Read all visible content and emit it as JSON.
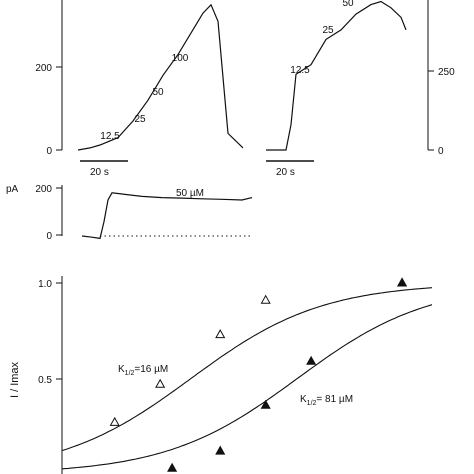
{
  "chart_data": [
    {
      "type": "line",
      "panel": "A-left",
      "y_ticks": [
        "200",
        "0"
      ],
      "concentration_labels": [
        "12.5",
        "25",
        "50",
        "100"
      ],
      "scale_bar_label": "20 s",
      "series": [
        {
          "x": [
            0,
            12,
            22,
            40,
            55,
            70,
            85,
            100,
            115,
            125,
            133,
            140,
            150,
            165
          ],
          "y": [
            0,
            5,
            12,
            30,
            70,
            120,
            180,
            230,
            290,
            330,
            350,
            310,
            40,
            5
          ]
        }
      ]
    },
    {
      "type": "line",
      "panel": "A-right",
      "y_ticks": [
        "250",
        "0"
      ],
      "concentration_labels": [
        "12.5",
        "25",
        "50"
      ],
      "scale_bar_label": "20 s",
      "series": [
        {
          "x": [
            0,
            20,
            25,
            30,
            45,
            60,
            75,
            90,
            105,
            115,
            125,
            135,
            140
          ],
          "y": [
            0,
            0,
            80,
            240,
            270,
            350,
            380,
            430,
            460,
            470,
            450,
            420,
            380
          ]
        }
      ]
    },
    {
      "type": "line",
      "panel": "B",
      "y_unit": "pA",
      "y_ticks": [
        "200",
        "0"
      ],
      "concentration_label": "50 µM",
      "baseline": 0,
      "series": [
        {
          "x": [
            0,
            10,
            18,
            22,
            26,
            30,
            40,
            60,
            80,
            100,
            120,
            140,
            160,
            170
          ],
          "y": [
            0,
            -5,
            -10,
            60,
            150,
            180,
            175,
            165,
            160,
            158,
            155,
            153,
            150,
            160
          ]
        }
      ]
    },
    {
      "type": "scatter",
      "panel": "C",
      "ylabel": "I / Imax",
      "y_ticks": [
        "1.0",
        "0.5"
      ],
      "ylim": [
        0,
        1
      ],
      "x_scale": "log",
      "series": [
        {
          "name": "K1/2=16 µM",
          "marker": "open-triangle",
          "k_half": 16,
          "x": [
            5,
            10,
            25,
            50,
            400
          ],
          "y": [
            0.27,
            0.47,
            0.73,
            0.91,
            1.0
          ]
        },
        {
          "name": "K1/2=81 µM",
          "marker": "filled-triangle",
          "k_half": 81,
          "x": [
            12,
            25,
            50,
            100,
            400
          ],
          "y": [
            0.03,
            0.12,
            0.36,
            0.59,
            1.0
          ]
        }
      ],
      "annotations": [
        {
          "prefix": "K",
          "sub": "1/2",
          "suffix": "=16 µM"
        },
        {
          "prefix": "K",
          "sub": "1/2",
          "suffix": "= 81 µM"
        }
      ]
    }
  ]
}
